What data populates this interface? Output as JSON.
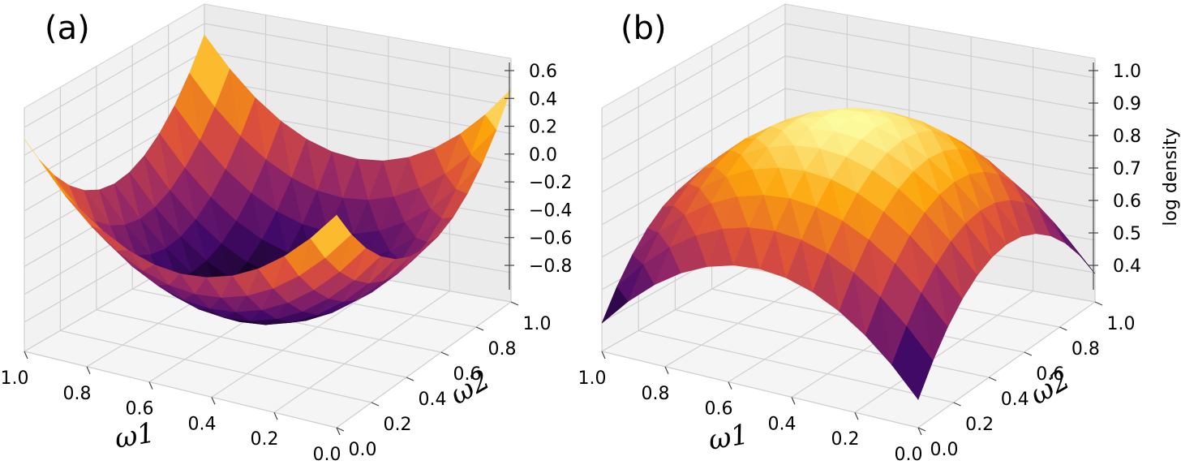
{
  "chart_data": [
    {
      "panel_label": "(a)",
      "type": "surface3d",
      "xlabel": "ω1",
      "ylabel": "ω2",
      "zlabel": "",
      "x_ticks": [
        "1.0",
        "0.8",
        "0.6",
        "0.4",
        "0.2",
        "0.0"
      ],
      "y_ticks": [
        "0.0",
        "0.2",
        "0.4",
        "0.6",
        "0.8",
        "1.0"
      ],
      "z_ticks": [
        "0.6",
        "0.4",
        "0.2",
        "0.0",
        "−0.2",
        "−0.4",
        "−0.6",
        "−0.8"
      ],
      "xlim": [
        0,
        1
      ],
      "ylim": [
        0,
        1
      ],
      "zlim": [
        -0.9,
        0.65
      ],
      "surface": "bowl",
      "z_min": -0.85,
      "z_max": 0.6,
      "colormap": [
        "#000004",
        "#420a68",
        "#932667",
        "#dd513a",
        "#fca50a",
        "#fcffa4"
      ]
    },
    {
      "panel_label": "(b)",
      "type": "surface3d",
      "xlabel": "ω1",
      "ylabel": "ω2",
      "zlabel": "log density",
      "x_ticks": [
        "1.0",
        "0.8",
        "0.6",
        "0.4",
        "0.2",
        "0.0"
      ],
      "y_ticks": [
        "0.0",
        "0.2",
        "0.4",
        "0.6",
        "0.8",
        "1.0"
      ],
      "z_ticks": [
        "1.0",
        "0.9",
        "0.8",
        "0.7",
        "0.6",
        "0.5",
        "0.4"
      ],
      "xlim": [
        0,
        1
      ],
      "ylim": [
        0,
        1
      ],
      "zlim": [
        0.35,
        1.0
      ],
      "surface": "dome",
      "z_min": 0.37,
      "z_max": 0.98,
      "colormap": [
        "#000004",
        "#420a68",
        "#932667",
        "#dd513a",
        "#fca50a",
        "#fcffa4"
      ]
    }
  ]
}
